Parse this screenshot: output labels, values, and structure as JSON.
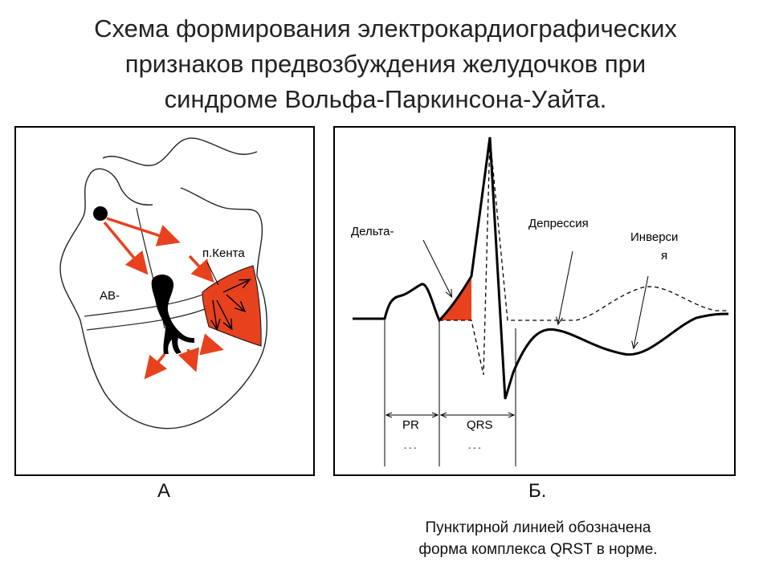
{
  "title": {
    "line1": "Схема формирования электрокардиографических",
    "line2": "признаков предвозбуждения желудочков при",
    "line3": "синдроме Вольфа-Паркинсона-Уайта."
  },
  "panel_a": {
    "caption": "А",
    "label_av": "АВ-",
    "label_kent": "п.Кента"
  },
  "panel_b": {
    "caption": "Б.",
    "label_delta": "Дельта-",
    "label_depression": "Депрессия",
    "label_inversion_1": "Инверси",
    "label_inversion_2": "я",
    "label_pr": "PR",
    "label_qrs": "QRS",
    "label_pr_sub": "- - -",
    "label_qrs_sub": "- - -"
  },
  "note": {
    "line1": "Пунктирной линией обозначена",
    "line2": "форма комплекса QRST в норме."
  },
  "colors": {
    "accent_red": "#e8411e",
    "line": "#000000"
  }
}
